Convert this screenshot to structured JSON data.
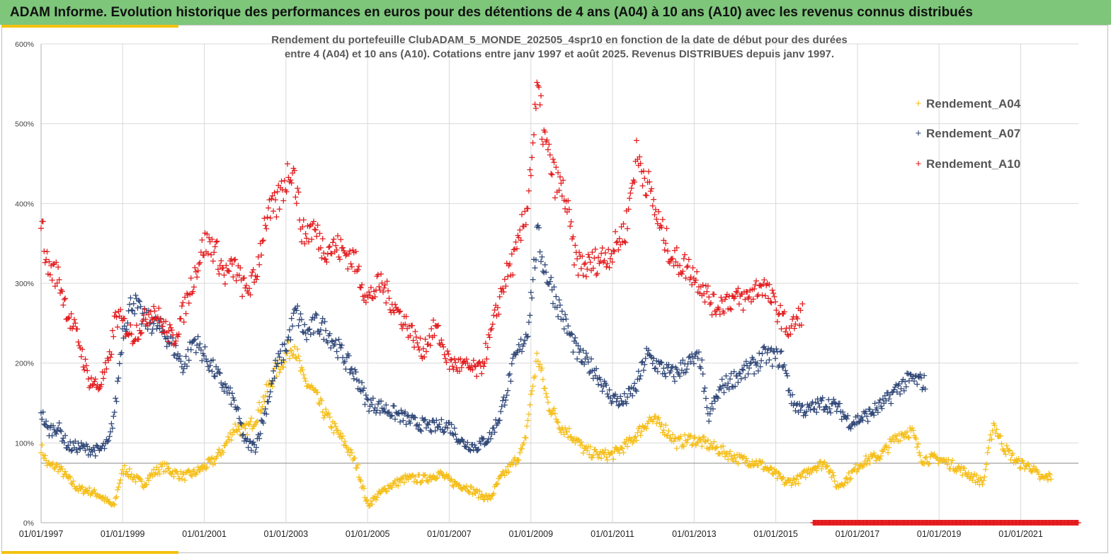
{
  "header": {
    "title": "ADAM Informe. Evolution historique des performances en euros pour des détentions de 4 ans (A04) à 10 ans (A10) avec les revenus connus distribués"
  },
  "colors": {
    "banner": "#7dc67a",
    "accent": "#f2c20f",
    "A04": "#f5be18",
    "A07": "#2e4677",
    "A10": "#e31a1c"
  },
  "chart_data": {
    "type": "scatter",
    "title": "Rendement du portefeuille ClubADAM_5_MONDE_202505_4spr10  en fonction de la date de début pour des durées",
    "subtitle": "entre 4 (A04) et 10 ans (A10). Cotations entre janv 1997 et août 2025. Revenus DISTRIBUES depuis janv 1997.",
    "xlim": [
      "1997-01-01",
      "2022-06-01"
    ],
    "ylim": [
      0,
      600
    ],
    "y_ticks": [
      "0%",
      "100%",
      "200%",
      "300%",
      "400%",
      "500%",
      "600%"
    ],
    "x_ticks": [
      "01/01/1997",
      "01/01/1999",
      "01/01/2001",
      "01/01/2003",
      "01/01/2005",
      "01/01/2007",
      "01/01/2009",
      "01/01/2011",
      "01/01/2013",
      "01/01/2015",
      "01/01/2017",
      "01/01/2019",
      "01/01/2021"
    ],
    "marker": "+",
    "grid": true,
    "legend_position": "top-right",
    "series": [
      {
        "name": "Rendement_A04",
        "x_end": "2021-10-01",
        "points": [
          [
            "1997-01-01",
            95
          ],
          [
            "1997-03-01",
            72
          ],
          [
            "1997-06-01",
            70
          ],
          [
            "1997-09-01",
            55
          ],
          [
            "1997-12-01",
            42
          ],
          [
            "1998-03-01",
            40
          ],
          [
            "1998-06-01",
            35
          ],
          [
            "1998-09-01",
            25
          ],
          [
            "1998-10-15",
            20
          ],
          [
            "1998-12-01",
            50
          ],
          [
            "1999-01-15",
            68
          ],
          [
            "1999-04-01",
            58
          ],
          [
            "1999-07-01",
            48
          ],
          [
            "1999-10-01",
            62
          ],
          [
            "2000-01-01",
            70
          ],
          [
            "2000-04-01",
            63
          ],
          [
            "2000-07-01",
            58
          ],
          [
            "2000-10-01",
            62
          ],
          [
            "2001-01-01",
            70
          ],
          [
            "2001-04-01",
            78
          ],
          [
            "2001-07-01",
            95
          ],
          [
            "2001-10-01",
            120
          ],
          [
            "2002-01-01",
            115
          ],
          [
            "2002-04-01",
            130
          ],
          [
            "2002-07-01",
            160
          ],
          [
            "2002-10-01",
            190
          ],
          [
            "2003-01-01",
            210
          ],
          [
            "2003-03-15",
            225
          ],
          [
            "2003-06-01",
            180
          ],
          [
            "2003-09-01",
            165
          ],
          [
            "2003-12-01",
            140
          ],
          [
            "2004-03-01",
            120
          ],
          [
            "2004-07-01",
            95
          ],
          [
            "2004-10-01",
            70
          ],
          [
            "2005-01-01",
            22
          ],
          [
            "2005-03-01",
            30
          ],
          [
            "2005-07-01",
            45
          ],
          [
            "2005-12-01",
            55
          ],
          [
            "2006-06-01",
            55
          ],
          [
            "2006-10-01",
            62
          ],
          [
            "2007-02-01",
            50
          ],
          [
            "2007-06-01",
            45
          ],
          [
            "2007-10-01",
            35
          ],
          [
            "2008-01-01",
            30
          ],
          [
            "2008-04-01",
            55
          ],
          [
            "2008-08-01",
            75
          ],
          [
            "2008-11-01",
            95
          ],
          [
            "2009-01-15",
            170
          ],
          [
            "2009-03-01",
            210
          ],
          [
            "2009-06-01",
            150
          ],
          [
            "2009-10-01",
            120
          ],
          [
            "2010-01-01",
            110
          ],
          [
            "2010-05-01",
            90
          ],
          [
            "2010-09-01",
            85
          ],
          [
            "2011-01-01",
            85
          ],
          [
            "2011-06-01",
            100
          ],
          [
            "2011-09-01",
            115
          ],
          [
            "2011-12-01",
            130
          ],
          [
            "2012-04-01",
            120
          ],
          [
            "2012-08-01",
            100
          ],
          [
            "2012-12-01",
            105
          ],
          [
            "2013-04-01",
            100
          ],
          [
            "2013-09-01",
            90
          ],
          [
            "2014-02-01",
            80
          ],
          [
            "2014-08-01",
            75
          ],
          [
            "2015-01-01",
            60
          ],
          [
            "2015-04-01",
            50
          ],
          [
            "2015-08-01",
            55
          ],
          [
            "2015-12-01",
            70
          ],
          [
            "2016-04-01",
            75
          ],
          [
            "2016-07-01",
            45
          ],
          [
            "2016-10-01",
            55
          ],
          [
            "2017-02-01",
            75
          ],
          [
            "2017-08-01",
            85
          ],
          [
            "2018-01-01",
            110
          ],
          [
            "2018-05-01",
            115
          ],
          [
            "2018-08-01",
            80
          ],
          [
            "2019-01-01",
            80
          ],
          [
            "2019-06-01",
            70
          ],
          [
            "2019-10-01",
            60
          ],
          [
            "2020-02-01",
            50
          ],
          [
            "2020-05-01",
            125
          ],
          [
            "2020-08-01",
            95
          ],
          [
            "2020-12-01",
            75
          ],
          [
            "2021-04-01",
            70
          ],
          [
            "2021-07-01",
            55
          ],
          [
            "2021-10-01",
            58
          ]
        ]
      },
      {
        "name": "Rendement_A07",
        "x_end": "2018-09-01",
        "points": [
          [
            "1997-01-01",
            140
          ],
          [
            "1997-03-01",
            115
          ],
          [
            "1997-06-01",
            120
          ],
          [
            "1997-09-01",
            95
          ],
          [
            "1997-12-01",
            95
          ],
          [
            "1998-03-01",
            92
          ],
          [
            "1998-06-01",
            90
          ],
          [
            "1998-09-01",
            100
          ],
          [
            "1998-11-01",
            150
          ],
          [
            "1999-01-01",
            240
          ],
          [
            "1999-04-01",
            280
          ],
          [
            "1999-07-01",
            255
          ],
          [
            "1999-10-01",
            250
          ],
          [
            "2000-01-01",
            240
          ],
          [
            "2000-04-01",
            220
          ],
          [
            "2000-07-01",
            195
          ],
          [
            "2000-10-01",
            230
          ],
          [
            "2001-01-01",
            210
          ],
          [
            "2001-04-01",
            190
          ],
          [
            "2001-07-01",
            170
          ],
          [
            "2001-10-01",
            150
          ],
          [
            "2002-01-01",
            100
          ],
          [
            "2002-04-01",
            95
          ],
          [
            "2002-07-01",
            140
          ],
          [
            "2002-10-01",
            195
          ],
          [
            "2003-01-01",
            220
          ],
          [
            "2003-04-01",
            265
          ],
          [
            "2003-07-01",
            235
          ],
          [
            "2003-10-01",
            250
          ],
          [
            "2004-01-01",
            240
          ],
          [
            "2004-05-01",
            215
          ],
          [
            "2004-10-01",
            180
          ],
          [
            "2005-01-01",
            150
          ],
          [
            "2005-05-01",
            145
          ],
          [
            "2005-10-01",
            135
          ],
          [
            "2006-03-01",
            125
          ],
          [
            "2006-08-01",
            120
          ],
          [
            "2007-01-01",
            122
          ],
          [
            "2007-05-01",
            100
          ],
          [
            "2007-09-01",
            95
          ],
          [
            "2008-01-01",
            108
          ],
          [
            "2008-04-01",
            135
          ],
          [
            "2008-08-01",
            200
          ],
          [
            "2008-12-01",
            240
          ],
          [
            "2009-03-01",
            360
          ],
          [
            "2009-05-01",
            320
          ],
          [
            "2009-08-01",
            285
          ],
          [
            "2009-11-01",
            250
          ],
          [
            "2010-03-01",
            210
          ],
          [
            "2010-08-01",
            190
          ],
          [
            "2010-12-01",
            160
          ],
          [
            "2011-04-01",
            150
          ],
          [
            "2011-08-01",
            170
          ],
          [
            "2011-11-01",
            210
          ],
          [
            "2012-03-01",
            195
          ],
          [
            "2012-07-01",
            185
          ],
          [
            "2012-11-01",
            200
          ],
          [
            "2013-03-01",
            205
          ],
          [
            "2013-05-01",
            130
          ],
          [
            "2013-09-01",
            170
          ],
          [
            "2014-02-01",
            185
          ],
          [
            "2014-06-01",
            195
          ],
          [
            "2014-10-01",
            210
          ],
          [
            "2015-03-01",
            205
          ],
          [
            "2015-06-01",
            150
          ],
          [
            "2015-10-01",
            140
          ],
          [
            "2016-03-01",
            150
          ],
          [
            "2016-07-01",
            145
          ],
          [
            "2016-11-01",
            125
          ],
          [
            "2017-04-01",
            135
          ],
          [
            "2017-09-01",
            150
          ],
          [
            "2018-01-01",
            170
          ],
          [
            "2018-05-01",
            180
          ],
          [
            "2018-09-01",
            175
          ]
        ]
      },
      {
        "name": "Rendement_A10",
        "x_end": "2015-09-01",
        "points": [
          [
            "1997-01-01",
            380
          ],
          [
            "1997-03-01",
            320
          ],
          [
            "1997-06-01",
            310
          ],
          [
            "1997-09-01",
            260
          ],
          [
            "1997-12-01",
            230
          ],
          [
            "1998-03-01",
            180
          ],
          [
            "1998-06-01",
            170
          ],
          [
            "1998-09-01",
            200
          ],
          [
            "1998-11-01",
            260
          ],
          [
            "1999-01-01",
            250
          ],
          [
            "1999-04-01",
            235
          ],
          [
            "1999-07-01",
            250
          ],
          [
            "1999-10-01",
            270
          ],
          [
            "2000-01-01",
            245
          ],
          [
            "2000-04-01",
            230
          ],
          [
            "2000-07-01",
            265
          ],
          [
            "2000-10-01",
            310
          ],
          [
            "2001-01-01",
            350
          ],
          [
            "2001-04-01",
            345
          ],
          [
            "2001-07-01",
            310
          ],
          [
            "2001-10-01",
            320
          ],
          [
            "2002-01-01",
            290
          ],
          [
            "2002-04-01",
            305
          ],
          [
            "2002-07-01",
            380
          ],
          [
            "2002-10-01",
            395
          ],
          [
            "2003-01-01",
            430
          ],
          [
            "2003-03-01",
            450
          ],
          [
            "2003-06-01",
            360
          ],
          [
            "2003-09-01",
            370
          ],
          [
            "2003-12-01",
            345
          ],
          [
            "2004-04-01",
            345
          ],
          [
            "2004-09-01",
            330
          ],
          [
            "2005-01-01",
            280
          ],
          [
            "2005-05-01",
            300
          ],
          [
            "2005-09-01",
            270
          ],
          [
            "2006-01-01",
            245
          ],
          [
            "2006-05-01",
            215
          ],
          [
            "2006-09-01",
            245
          ],
          [
            "2007-01-01",
            200
          ],
          [
            "2007-06-01",
            195
          ],
          [
            "2007-10-01",
            190
          ],
          [
            "2008-01-01",
            230
          ],
          [
            "2008-05-01",
            300
          ],
          [
            "2008-09-01",
            340
          ],
          [
            "2008-12-01",
            400
          ],
          [
            "2009-03-01",
            540
          ],
          [
            "2009-05-01",
            480
          ],
          [
            "2009-08-01",
            430
          ],
          [
            "2009-11-01",
            410
          ],
          [
            "2010-02-01",
            330
          ],
          [
            "2010-05-01",
            320
          ],
          [
            "2010-09-01",
            330
          ],
          [
            "2011-01-01",
            340
          ],
          [
            "2011-05-01",
            370
          ],
          [
            "2011-08-01",
            460
          ],
          [
            "2011-11-01",
            430
          ],
          [
            "2012-03-01",
            370
          ],
          [
            "2012-07-01",
            330
          ],
          [
            "2012-11-01",
            320
          ],
          [
            "2013-03-01",
            300
          ],
          [
            "2013-07-01",
            270
          ],
          [
            "2013-11-01",
            280
          ],
          [
            "2014-04-01",
            280
          ],
          [
            "2014-09-01",
            300
          ],
          [
            "2015-01-01",
            270
          ],
          [
            "2015-05-01",
            240
          ],
          [
            "2015-09-01",
            265
          ]
        ]
      }
    ]
  }
}
